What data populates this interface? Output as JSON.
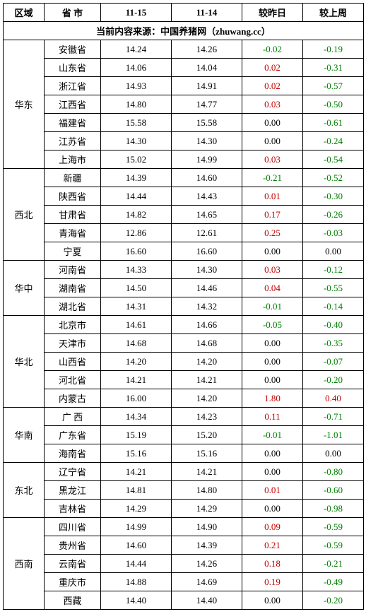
{
  "columns": [
    "区域",
    "省 市",
    "11-15",
    "11-14",
    "较昨日",
    "较上周"
  ],
  "source_text": "当前内容来源：中国养猪网（zhuwang.cc）",
  "regions": [
    {
      "name": "华东",
      "rows": [
        {
          "prov": "安徽省",
          "d1": "14.24",
          "d2": "14.26",
          "dd": "-0.02",
          "dw": "-0.19"
        },
        {
          "prov": "山东省",
          "d1": "14.06",
          "d2": "14.04",
          "dd": "0.02",
          "dw": "-0.31"
        },
        {
          "prov": "浙江省",
          "d1": "14.93",
          "d2": "14.91",
          "dd": "0.02",
          "dw": "-0.57"
        },
        {
          "prov": "江西省",
          "d1": "14.80",
          "d2": "14.77",
          "dd": "0.03",
          "dw": "-0.50"
        },
        {
          "prov": "福建省",
          "d1": "15.58",
          "d2": "15.58",
          "dd": "0.00",
          "dw": "-0.61"
        },
        {
          "prov": "江苏省",
          "d1": "14.30",
          "d2": "14.30",
          "dd": "0.00",
          "dw": "-0.24"
        },
        {
          "prov": "上海市",
          "d1": "15.02",
          "d2": "14.99",
          "dd": "0.03",
          "dw": "-0.54"
        }
      ]
    },
    {
      "name": "西北",
      "rows": [
        {
          "prov": "新疆",
          "d1": "14.39",
          "d2": "14.60",
          "dd": "-0.21",
          "dw": "-0.52"
        },
        {
          "prov": "陕西省",
          "d1": "14.44",
          "d2": "14.43",
          "dd": "0.01",
          "dw": "-0.30"
        },
        {
          "prov": "甘肃省",
          "d1": "14.82",
          "d2": "14.65",
          "dd": "0.17",
          "dw": "-0.26"
        },
        {
          "prov": "青海省",
          "d1": "12.86",
          "d2": "12.61",
          "dd": "0.25",
          "dw": "-0.03"
        },
        {
          "prov": "宁夏",
          "d1": "16.60",
          "d2": "16.60",
          "dd": "0.00",
          "dw": "0.00"
        }
      ]
    },
    {
      "name": "华中",
      "rows": [
        {
          "prov": "河南省",
          "d1": "14.33",
          "d2": "14.30",
          "dd": "0.03",
          "dw": "-0.12"
        },
        {
          "prov": "湖南省",
          "d1": "14.50",
          "d2": "14.46",
          "dd": "0.04",
          "dw": "-0.55"
        },
        {
          "prov": "湖北省",
          "d1": "14.31",
          "d2": "14.32",
          "dd": "-0.01",
          "dw": "-0.14"
        }
      ]
    },
    {
      "name": "华北",
      "rows": [
        {
          "prov": "北京市",
          "d1": "14.61",
          "d2": "14.66",
          "dd": "-0.05",
          "dw": "-0.40"
        },
        {
          "prov": "天津市",
          "d1": "14.68",
          "d2": "14.68",
          "dd": "0.00",
          "dw": "-0.35"
        },
        {
          "prov": "山西省",
          "d1": "14.20",
          "d2": "14.20",
          "dd": "0.00",
          "dw": "-0.07"
        },
        {
          "prov": "河北省",
          "d1": "14.21",
          "d2": "14.21",
          "dd": "0.00",
          "dw": "-0.20"
        },
        {
          "prov": "内蒙古",
          "d1": "16.00",
          "d2": "14.20",
          "dd": "1.80",
          "dw": "0.40"
        }
      ]
    },
    {
      "name": "华南",
      "rows": [
        {
          "prov": "广 西",
          "d1": "14.34",
          "d2": "14.23",
          "dd": "0.11",
          "dw": "-0.71"
        },
        {
          "prov": "广东省",
          "d1": "15.19",
          "d2": "15.20",
          "dd": "-0.01",
          "dw": "-1.01"
        },
        {
          "prov": "海南省",
          "d1": "15.16",
          "d2": "15.16",
          "dd": "0.00",
          "dw": "0.00"
        }
      ]
    },
    {
      "name": "东北",
      "rows": [
        {
          "prov": "辽宁省",
          "d1": "14.21",
          "d2": "14.21",
          "dd": "0.00",
          "dw": "-0.80"
        },
        {
          "prov": "黑龙江",
          "d1": "14.81",
          "d2": "14.80",
          "dd": "0.01",
          "dw": "-0.60"
        },
        {
          "prov": "吉林省",
          "d1": "14.29",
          "d2": "14.29",
          "dd": "0.00",
          "dw": "-0.98"
        }
      ]
    },
    {
      "name": "西南",
      "rows": [
        {
          "prov": "四川省",
          "d1": "14.99",
          "d2": "14.90",
          "dd": "0.09",
          "dw": "-0.59"
        },
        {
          "prov": "贵州省",
          "d1": "14.60",
          "d2": "14.39",
          "dd": "0.21",
          "dw": "-0.59"
        },
        {
          "prov": "云南省",
          "d1": "14.44",
          "d2": "14.26",
          "dd": "0.18",
          "dw": "-0.21"
        },
        {
          "prov": "重庆市",
          "d1": "14.88",
          "d2": "14.69",
          "dd": "0.19",
          "dw": "-0.49"
        },
        {
          "prov": "西藏",
          "d1": "14.40",
          "d2": "14.40",
          "dd": "0.00",
          "dw": "-0.20"
        }
      ]
    }
  ]
}
